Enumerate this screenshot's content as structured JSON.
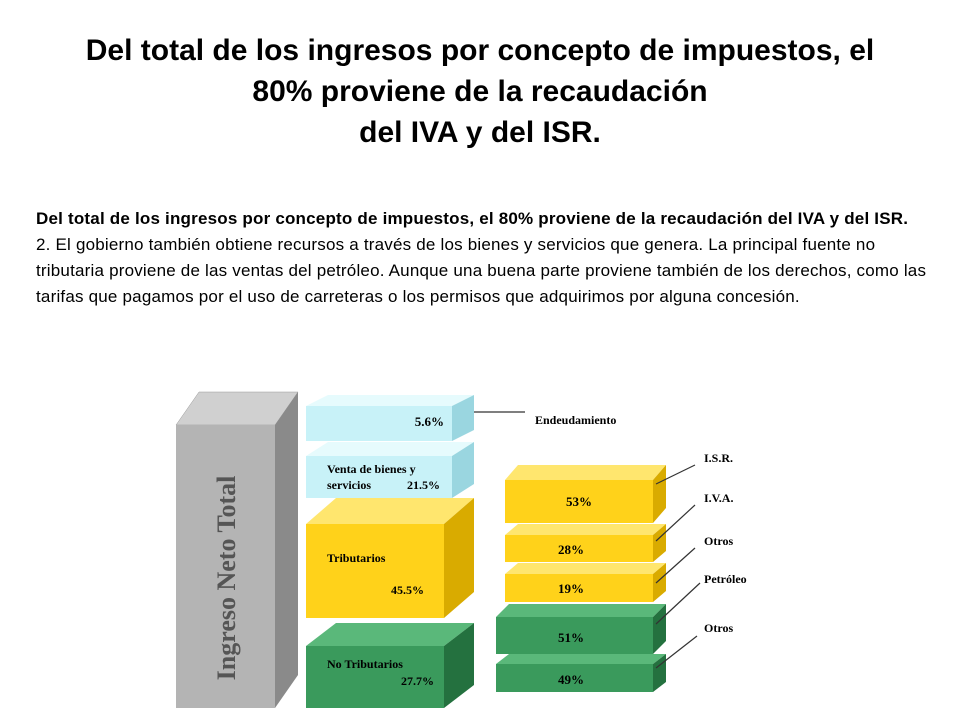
{
  "title": {
    "line1": "Del total de los ingresos por concepto de impuestos, el",
    "line2": "80% proviene de la recaudación",
    "line3": "del IVA y del ISR."
  },
  "body": {
    "lead": "Del total de los ingresos por concepto de impuestos, el 80% proviene de la recaudación del IVA y del ISR.",
    "paragraph": "2. El gobierno también obtiene recursos a través de los bienes y servicios que genera. La principal fuente no tributaria proviene de las ventas del petróleo. Aunque una buena parte proviene también de los derechos, como las tarifas que pagamos por el uso de carreteras o los permisos que adquirimos por alguna concesión."
  },
  "diagram": {
    "total_label": "Ingreso Neto Total",
    "middle": [
      {
        "id": "endeudamiento",
        "label": "",
        "value": "5.6%",
        "color": "cyan"
      },
      {
        "id": "venta",
        "label_line1": "Venta de bienes y",
        "label_line2": "servicios",
        "value": "21.5%",
        "color": "cyan"
      },
      {
        "id": "tributarios",
        "label": "Tributarios",
        "value": "45.5%",
        "color": "yellow"
      },
      {
        "id": "no_tributarios",
        "label": "No Tributarios",
        "value": "27.7%",
        "color": "green"
      }
    ],
    "right": [
      {
        "id": "isr",
        "value": "53%",
        "color": "yellow"
      },
      {
        "id": "iva",
        "value": "28%",
        "color": "yellow"
      },
      {
        "id": "otros_trib",
        "value": "19%",
        "color": "yellow"
      },
      {
        "id": "petroleo",
        "value": "51%",
        "color": "green"
      },
      {
        "id": "otros_no_trib",
        "value": "49%",
        "color": "green"
      }
    ],
    "callouts": {
      "endeudamiento": "Endeudamiento",
      "isr": "I.S.R.",
      "iva": "I.V.A.",
      "otros1": "Otros",
      "petroleo": "Petróleo",
      "otros2": "Otros"
    },
    "colors": {
      "cyan_front": "#c8f2f8",
      "cyan_top": "#e6fbfd",
      "cyan_side": "#9ad6e0",
      "yellow_front": "#ffd21a",
      "yellow_top": "#ffe66e",
      "yellow_side": "#d9ab00",
      "green_front": "#3a9a5c",
      "green_top": "#5ab87a",
      "green_side": "#24713f",
      "gray_front": "#b4b4b4",
      "gray_top": "#d0d0d0",
      "gray_side": "#8a8a8a"
    }
  }
}
